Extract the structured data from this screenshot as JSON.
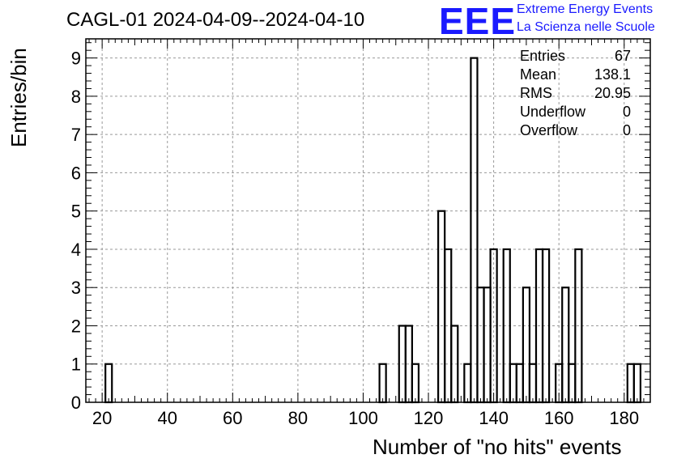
{
  "chart_data": {
    "type": "bar",
    "title": "CAGL-01 2024-04-09--2024-04-10",
    "xlabel": "Number of \"no hits\" events",
    "ylabel": "Entries/bin",
    "xlim": [
      15,
      188
    ],
    "ylim": [
      0,
      9.5
    ],
    "x_ticks": [
      20,
      40,
      60,
      80,
      100,
      120,
      140,
      160,
      180
    ],
    "y_ticks": [
      0,
      1,
      2,
      3,
      4,
      5,
      6,
      7,
      8,
      9
    ],
    "grid": true,
    "bin_width": 2,
    "bins": [
      {
        "x0": 21,
        "count": 1
      },
      {
        "x0": 105,
        "count": 1
      },
      {
        "x0": 111,
        "count": 2
      },
      {
        "x0": 113,
        "count": 2
      },
      {
        "x0": 115,
        "count": 1
      },
      {
        "x0": 123,
        "count": 5
      },
      {
        "x0": 125,
        "count": 4
      },
      {
        "x0": 127,
        "count": 2
      },
      {
        "x0": 131,
        "count": 1
      },
      {
        "x0": 133,
        "count": 9
      },
      {
        "x0": 135,
        "count": 3
      },
      {
        "x0": 137,
        "count": 3
      },
      {
        "x0": 139,
        "count": 4
      },
      {
        "x0": 143,
        "count": 4
      },
      {
        "x0": 145,
        "count": 1
      },
      {
        "x0": 147,
        "count": 1
      },
      {
        "x0": 149,
        "count": 3
      },
      {
        "x0": 151,
        "count": 1
      },
      {
        "x0": 153,
        "count": 4
      },
      {
        "x0": 155,
        "count": 4
      },
      {
        "x0": 159,
        "count": 1
      },
      {
        "x0": 161,
        "count": 3
      },
      {
        "x0": 163,
        "count": 1
      },
      {
        "x0": 165,
        "count": 4
      },
      {
        "x0": 181,
        "count": 1
      },
      {
        "x0": 183,
        "count": 1
      }
    ],
    "stats": [
      {
        "label": "Entries",
        "value": "67"
      },
      {
        "label": "Mean",
        "value": "138.1"
      },
      {
        "label": "RMS",
        "value": "20.95"
      },
      {
        "label": "Underflow",
        "value": "0"
      },
      {
        "label": "Overflow",
        "value": "0"
      }
    ],
    "logo": {
      "text": "EEE",
      "line1": "Extreme Energy Events",
      "line2": "La Scienza nelle Scuole",
      "color": "#1a1aff"
    }
  }
}
